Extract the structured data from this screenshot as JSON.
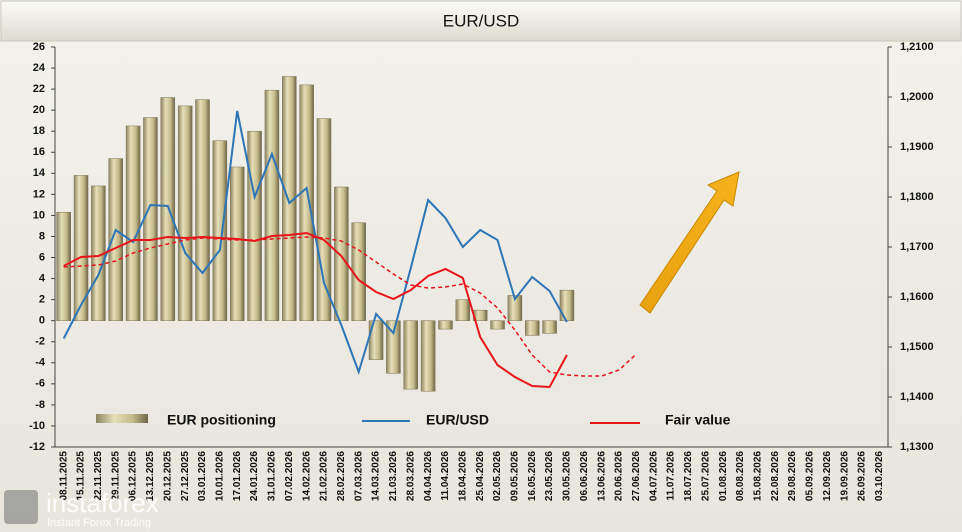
{
  "chart_data": {
    "type": "bar_line",
    "title": "EUR/USD",
    "categories": [
      "08.11.2025",
      "15.11.2025",
      "22.11.2025",
      "29.11.2025",
      "06.12.2025",
      "13.12.2025",
      "20.12.2025",
      "27.12.2025",
      "03.01.2026",
      "10.01.2026",
      "17.01.2026",
      "24.01.2026",
      "31.01.2026",
      "07.02.2026",
      "14.02.2026",
      "21.02.2026",
      "28.02.2026",
      "07.03.2026",
      "14.03.2026",
      "21.03.2026",
      "28.03.2026",
      "04.04.2026",
      "11.04.2026",
      "18.04.2026",
      "25.04.2026",
      "02.05.2026",
      "09.05.2026",
      "16.05.2026",
      "23.05.2026",
      "30.05.2026",
      "06.06.2026",
      "13.06.2026",
      "20.06.2026",
      "27.06.2026",
      "04.07.2026",
      "11.07.2026",
      "18.07.2026",
      "25.07.2026",
      "01.08.2026",
      "08.08.2026",
      "15.08.2026",
      "22.08.2026",
      "29.08.2026",
      "05.09.2026",
      "12.09.2026",
      "19.09.2026",
      "26.09.2026",
      "03.10.2026"
    ],
    "series": [
      {
        "name": "EUR positioning",
        "kind": "bar",
        "color": "#c9c08f",
        "values": [
          10.3,
          13.8,
          12.8,
          15.4,
          18.5,
          19.3,
          21.2,
          20.4,
          21.0,
          17.1,
          14.6,
          18.0,
          21.9,
          23.2,
          22.4,
          19.2,
          12.7,
          9.3,
          -3.7,
          -5.0,
          -6.5,
          -6.7,
          -0.8,
          2.0,
          1.0,
          -0.8,
          2.4,
          -1.4,
          -1.2,
          2.9,
          null,
          null,
          null,
          null,
          null,
          null,
          null,
          null,
          null,
          null,
          null,
          null,
          null,
          null,
          null,
          null,
          null,
          null
        ]
      },
      {
        "name": "EUR/USD",
        "kind": "line",
        "axis": "y2",
        "color": "#2e75b6",
        "values": [
          1.1517,
          1.1584,
          1.1644,
          1.1734,
          1.171,
          1.1784,
          1.1782,
          1.1688,
          1.1648,
          1.1694,
          1.1972,
          1.18,
          1.1886,
          1.1788,
          1.1818,
          1.1628,
          1.1544,
          1.145,
          1.1566,
          1.1528,
          1.1658,
          1.1794,
          1.1758,
          1.17,
          1.1734,
          1.1714,
          1.1596,
          1.164,
          1.1612,
          1.155,
          null,
          null,
          null,
          null,
          null,
          null,
          null,
          null,
          null,
          null,
          null,
          null,
          null,
          null,
          null,
          null,
          null,
          null
        ]
      },
      {
        "name": "Fair value",
        "kind": "line",
        "axis": "y2",
        "color": "#e8141b",
        "values": [
          1.1662,
          1.168,
          1.1682,
          1.1698,
          1.1714,
          1.1714,
          1.172,
          1.1718,
          1.172,
          1.1718,
          1.1716,
          1.1712,
          1.1722,
          1.1724,
          1.1728,
          1.1714,
          1.1682,
          1.1634,
          1.161,
          1.1596,
          1.1614,
          1.1642,
          1.1656,
          1.1638,
          1.152,
          1.1464,
          1.144,
          1.1422,
          1.142,
          1.1484,
          null,
          null,
          null,
          null,
          null,
          null,
          null,
          null,
          null,
          null,
          null,
          null,
          null,
          null,
          null,
          null,
          null,
          null
        ]
      },
      {
        "kind": "line",
        "axis": "y2",
        "dashed": true,
        "color": "#e8141b",
        "values": [
          1.166,
          1.1662,
          1.1664,
          1.1672,
          1.1688,
          1.1698,
          1.1706,
          1.1714,
          1.1718,
          1.1716,
          1.1714,
          1.1714,
          1.1716,
          1.1718,
          1.172,
          1.1718,
          1.1712,
          1.1694,
          1.167,
          1.1646,
          1.1624,
          1.1618,
          1.162,
          1.1626,
          1.1608,
          1.1578,
          1.1534,
          1.1484,
          1.145,
          1.1444,
          1.1442,
          1.1442,
          1.1454,
          1.1486,
          null,
          null,
          null,
          null,
          null,
          null,
          null,
          null,
          null,
          null,
          null,
          null,
          null,
          null
        ]
      }
    ],
    "ylim": [
      -12,
      26
    ],
    "yticks": [
      -12,
      -10,
      -8,
      -6,
      -4,
      -2,
      0,
      2,
      4,
      6,
      8,
      10,
      12,
      14,
      16,
      18,
      20,
      22,
      24,
      26
    ],
    "y2lim": [
      1.13,
      1.21
    ],
    "y2ticks": [
      {
        "value": 1.13,
        "label": "1,1300"
      },
      {
        "value": 1.14,
        "label": "1,1400"
      },
      {
        "value": 1.15,
        "label": "1,1500"
      },
      {
        "value": 1.16,
        "label": "1,1600"
      },
      {
        "value": 1.17,
        "label": "1,1700"
      },
      {
        "value": 1.18,
        "label": "1,1800"
      },
      {
        "value": 1.19,
        "label": "1,1900"
      },
      {
        "value": 1.2,
        "label": "1,2000"
      },
      {
        "value": 1.21,
        "label": "1,2100"
      }
    ],
    "grid": false,
    "legend": "lower center"
  },
  "watermark": {
    "brand": "instaforex",
    "tagline": "Instant Forex Trading"
  }
}
